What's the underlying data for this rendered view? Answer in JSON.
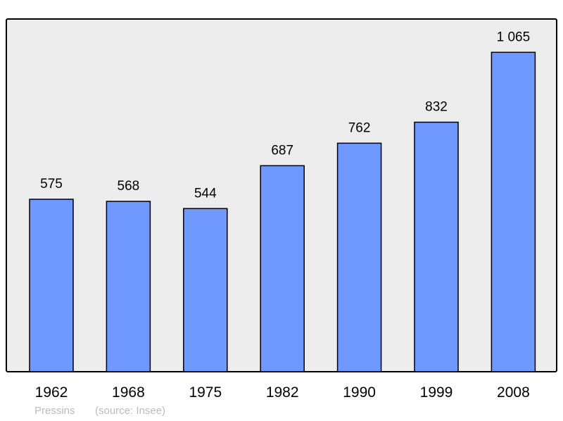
{
  "chart_data": {
    "type": "bar",
    "categories": [
      "1962",
      "1968",
      "1975",
      "1982",
      "1990",
      "1999",
      "2008"
    ],
    "values": [
      575,
      568,
      544,
      687,
      762,
      832,
      1065
    ],
    "value_labels": [
      "575",
      "568",
      "544",
      "687",
      "762",
      "832",
      "1 065"
    ],
    "title": "",
    "xlabel": "",
    "ylabel": "",
    "grid": false,
    "colors": {
      "bar": "#7099ff",
      "plot_background": "#ededed",
      "border": "#000000"
    }
  },
  "footer": {
    "place": "Pressins",
    "source": "(source: Insee)"
  }
}
